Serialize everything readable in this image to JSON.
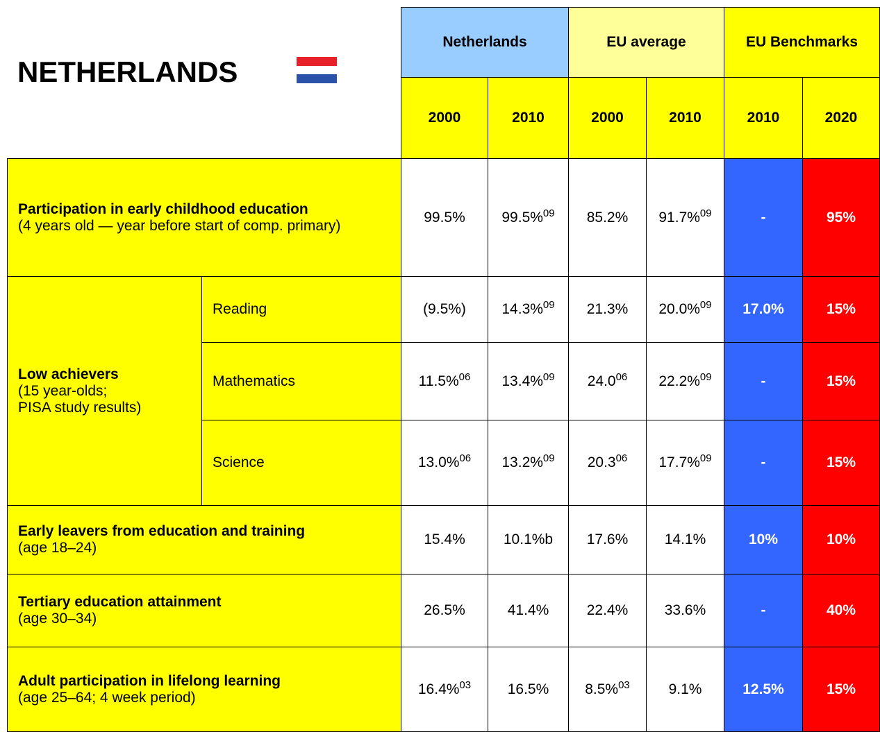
{
  "title": "NETHERLANDS",
  "header": {
    "groups": [
      "Netherlands",
      "EU average",
      "EU Benchmarks"
    ],
    "years": [
      "2000",
      "2010",
      "2000",
      "2010",
      "2010",
      "2020"
    ]
  },
  "rows": [
    {
      "label": "Participation in early childhood education",
      "note_lines": [
        "(4 years old — year before start of comp. primary)"
      ],
      "cells": [
        {
          "text": "99.5%"
        },
        {
          "text": "99.5%",
          "sup": "09"
        },
        {
          "text": "85.2%"
        },
        {
          "text": "91.7%",
          "sup": "09"
        },
        {
          "text": "-"
        },
        {
          "text": "95%"
        }
      ]
    },
    {
      "label": "Low achievers",
      "note_lines": [
        "(15 year-olds;",
        "PISA study results)"
      ],
      "subrows": [
        {
          "label": "Reading",
          "cells": [
            {
              "text": "(9.5%)"
            },
            {
              "text": "14.3%",
              "sup": "09"
            },
            {
              "text": "21.3%"
            },
            {
              "text": "20.0%",
              "sup": "09"
            },
            {
              "text": "17.0%"
            },
            {
              "text": "15%"
            }
          ]
        },
        {
          "label": "Mathematics",
          "cells": [
            {
              "text": "11.5%",
              "sup": "06"
            },
            {
              "text": "13.4%",
              "sup": "09"
            },
            {
              "text": "24.0",
              "sup": "06"
            },
            {
              "text": "22.2%",
              "sup": "09"
            },
            {
              "text": "-"
            },
            {
              "text": "15%"
            }
          ]
        },
        {
          "label": "Science",
          "cells": [
            {
              "text": "13.0%",
              "sup": "06"
            },
            {
              "text": "13.2%",
              "sup": "09"
            },
            {
              "text": "20.3",
              "sup": "06"
            },
            {
              "text": "17.7%",
              "sup": "09"
            },
            {
              "text": "-"
            },
            {
              "text": "15%"
            }
          ]
        }
      ]
    },
    {
      "label": "Early leavers from education and training",
      "note_lines": [
        "(age 18–24)"
      ],
      "cells": [
        {
          "text": "15.4%"
        },
        {
          "text": "10.1%b"
        },
        {
          "text": "17.6%"
        },
        {
          "text": "14.1%"
        },
        {
          "text": "10%"
        },
        {
          "text": "10%"
        }
      ]
    },
    {
      "label": "Tertiary education attainment",
      "note_lines": [
        "(age 30–34)"
      ],
      "cells": [
        {
          "text": "26.5%"
        },
        {
          "text": "41.4%"
        },
        {
          "text": "22.4%"
        },
        {
          "text": "33.6%"
        },
        {
          "text": "-"
        },
        {
          "text": "40%"
        }
      ]
    },
    {
      "label": "Adult participation in lifelong learning",
      "note_lines": [
        "(age 25–64; 4 week period)"
      ],
      "cells": [
        {
          "text": "16.4%",
          "sup": "03"
        },
        {
          "text": "16.5%"
        },
        {
          "text": "8.5%",
          "sup": "03"
        },
        {
          "text": "9.1%"
        },
        {
          "text": "12.5%"
        },
        {
          "text": "15%"
        }
      ]
    }
  ]
}
